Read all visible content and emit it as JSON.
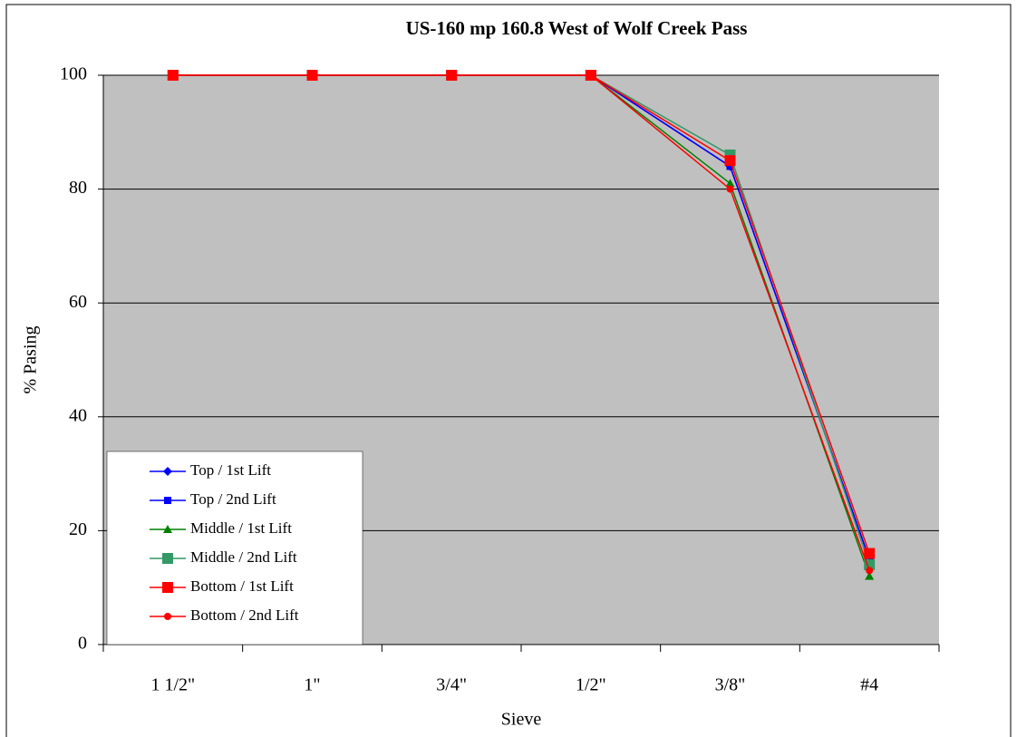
{
  "chart_data": {
    "type": "line",
    "title": "US-160 mp 160.8 West of Wolf Creek Pass",
    "x_label": "Sieve",
    "y_label": "% Pasing",
    "categories": [
      "1 1/2\"",
      "1\"",
      "3/4\"",
      "1/2\"",
      "3/8\"",
      "#4"
    ],
    "series": [
      {
        "name": "Top / 1st Lift",
        "color": "#0000ff",
        "marker": "diamond",
        "values": [
          100,
          100,
          100,
          100,
          84,
          15
        ]
      },
      {
        "name": "Top / 2nd Lift",
        "color": "#0000ff",
        "marker": "square",
        "values": [
          100,
          100,
          100,
          100,
          84,
          15
        ]
      },
      {
        "name": "Middle / 1st Lift",
        "color": "#008000",
        "marker": "triangle",
        "values": [
          100,
          100,
          100,
          100,
          81,
          12
        ]
      },
      {
        "name": "Middle / 2nd Lift",
        "color": "#339966",
        "marker": "big-square",
        "values": [
          100,
          100,
          100,
          100,
          86,
          14
        ]
      },
      {
        "name": "Bottom / 1st Lift",
        "color": "#ff0000",
        "marker": "big-square",
        "values": [
          100,
          100,
          100,
          100,
          85,
          16
        ]
      },
      {
        "name": "Bottom / 2nd Lift",
        "color": "#ff0000",
        "marker": "circle",
        "values": [
          100,
          100,
          100,
          100,
          80,
          13
        ]
      }
    ],
    "ylim": [
      0,
      100
    ],
    "yticks": [
      0,
      20,
      40,
      60,
      80,
      100
    ],
    "grid": true,
    "plot_background": "#c0c0c0",
    "legend": "lower left"
  }
}
